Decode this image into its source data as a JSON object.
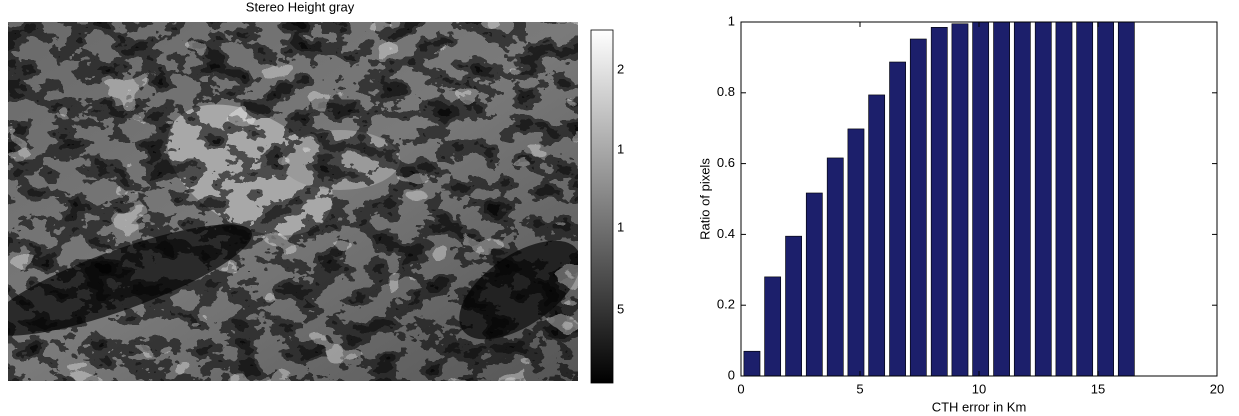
{
  "image_panel": {
    "title": "Stereo Height gray",
    "colorbar_labels": [
      "2",
      "1",
      "1",
      "5"
    ]
  },
  "chart_data": {
    "type": "bar",
    "x": [
      0.46,
      1.33,
      2.21,
      3.08,
      3.96,
      4.83,
      5.7,
      6.58,
      7.45,
      8.33,
      9.2,
      10.07,
      10.95,
      11.82,
      12.7,
      13.57,
      14.44,
      15.32,
      16.19
    ],
    "values": [
      0.07,
      0.28,
      0.395,
      0.517,
      0.616,
      0.698,
      0.794,
      0.887,
      0.952,
      0.985,
      0.995,
      1,
      1,
      1,
      1,
      1,
      1,
      1,
      1
    ],
    "color": "#1c1f6b",
    "xlabel": "CTH error in Km",
    "ylabel": "Ratio of pixels",
    "xlim": [
      0,
      20
    ],
    "xticks": [
      0,
      5,
      10,
      15,
      20
    ],
    "ylim": [
      0,
      1
    ],
    "yticks": [
      0,
      0.2,
      0.4,
      0.6,
      0.8,
      1
    ]
  }
}
